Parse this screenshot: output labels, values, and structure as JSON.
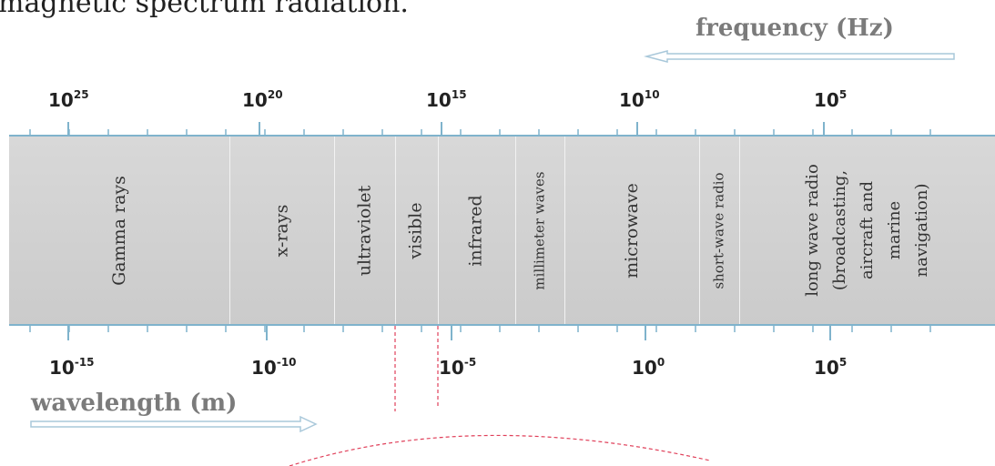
{
  "caption": "magnetic spectrum radiation.",
  "frequency_axis": {
    "title": "frequency (Hz)",
    "labels": [
      {
        "base": "10",
        "exp": "25"
      },
      {
        "base": "10",
        "exp": "20"
      },
      {
        "base": "10",
        "exp": "15"
      },
      {
        "base": "10",
        "exp": "10"
      },
      {
        "base": "10",
        "exp": "5"
      }
    ]
  },
  "wavelength_axis": {
    "title": "wavelength (m)",
    "labels": [
      {
        "base": "10",
        "exp": "-15"
      },
      {
        "base": "10",
        "exp": "-10"
      },
      {
        "base": "10",
        "exp": "-5"
      },
      {
        "base": "10",
        "exp": "0"
      },
      {
        "base": "10",
        "exp": "5"
      }
    ]
  },
  "regions": [
    {
      "name": "Gamma rays"
    },
    {
      "name": "x-rays"
    },
    {
      "name": "ultraviolet"
    },
    {
      "name": "visible"
    },
    {
      "name": "infrared"
    },
    {
      "name": "millimeter waves"
    },
    {
      "name": "microwave"
    },
    {
      "name": "short-wave radio"
    },
    {
      "name": "long wave radio (broadcasting, aircraft and marine navigation)",
      "lines": [
        "long wave radio",
        "(broadcasting,",
        "aircraft and",
        "marine",
        "navigation)"
      ]
    }
  ],
  "colors": {
    "band": "#d0d0d0",
    "axis_line": "#7fb3cc",
    "arrow": "#a9c8da",
    "guide": "#e0405a",
    "axis_title": "#7b7b7b"
  },
  "icons": {
    "frequency_arrow": "arrow-left-icon",
    "wavelength_arrow": "arrow-right-icon"
  }
}
